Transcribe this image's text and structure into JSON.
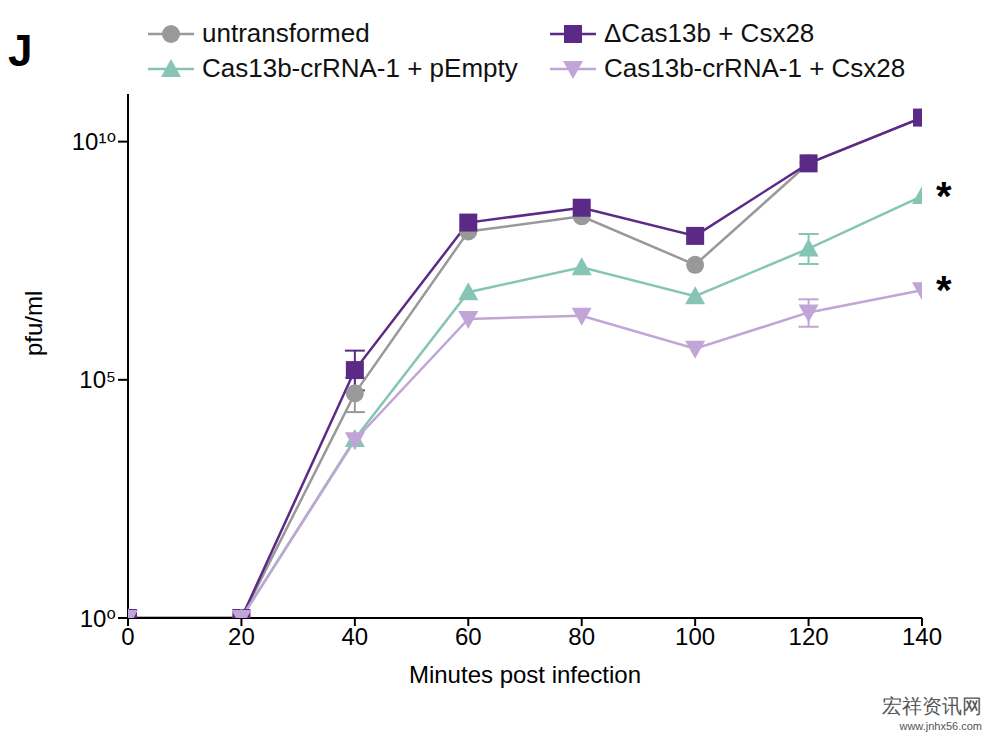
{
  "chart_data": {
    "type": "line",
    "panel_label": "J",
    "x_label": "Minutes post infection",
    "y_label": "pfu/ml",
    "log": "y",
    "grid": false,
    "legend": "top",
    "x": [
      0,
      20,
      40,
      60,
      80,
      100,
      120,
      140
    ],
    "xlim": [
      0,
      140
    ],
    "xticks": [
      0,
      20,
      40,
      60,
      80,
      100,
      120,
      140
    ],
    "ylim": [
      1,
      100000000000
    ],
    "yticks": [
      {
        "value": 1,
        "label": "10⁰"
      },
      {
        "value": 100000,
        "label": "10⁵"
      },
      {
        "value": 10000000000,
        "label": "10¹⁰"
      }
    ],
    "series": [
      {
        "name": "untransformed",
        "color": "#999999",
        "marker": "circle",
        "values": [
          1,
          1,
          52000,
          130000000,
          270000000,
          26000000,
          3500000000,
          32000000000
        ],
        "errors": [
          null,
          null,
          [
            31000,
            58000
          ],
          null,
          null,
          null,
          null,
          null
        ]
      },
      {
        "name": "ΔCas13b + Csx28",
        "color": "#5b2a86",
        "marker": "square",
        "values": [
          1,
          1,
          160000,
          200000000,
          410000000,
          105000000,
          3500000000,
          32000000000
        ],
        "errors": [
          null,
          null,
          [
            100000,
            250000
          ],
          null,
          null,
          null,
          null,
          null
        ]
      },
      {
        "name": "Cas13b-crRNA-1 + pEmpty",
        "color": "#86c5b4",
        "marker": "triangle",
        "values": [
          1,
          1,
          5700,
          6900000,
          23000000,
          5700000,
          57000000,
          720000000
        ],
        "errors": [
          null,
          null,
          null,
          null,
          null,
          null,
          [
            30000000,
            58000000
          ],
          null
        ]
      },
      {
        "name": "Cas13b-crRNA-1 + Csx28",
        "color": "#c1a5d6",
        "marker": "triangle-down",
        "values": [
          1,
          1,
          5400,
          1900000,
          2200000,
          450000,
          2600000,
          7600000
        ],
        "errors": [
          null,
          null,
          null,
          null,
          null,
          null,
          [
            1300000,
            2300000
          ],
          null
        ]
      }
    ],
    "annotations": [
      {
        "text": "*",
        "x": 140,
        "y": 720000000
      },
      {
        "text": "*",
        "x": 140,
        "y": 7600000
      }
    ],
    "watermark": "宏祥资讯网",
    "watermark_url": "www.jnhx56.com"
  }
}
